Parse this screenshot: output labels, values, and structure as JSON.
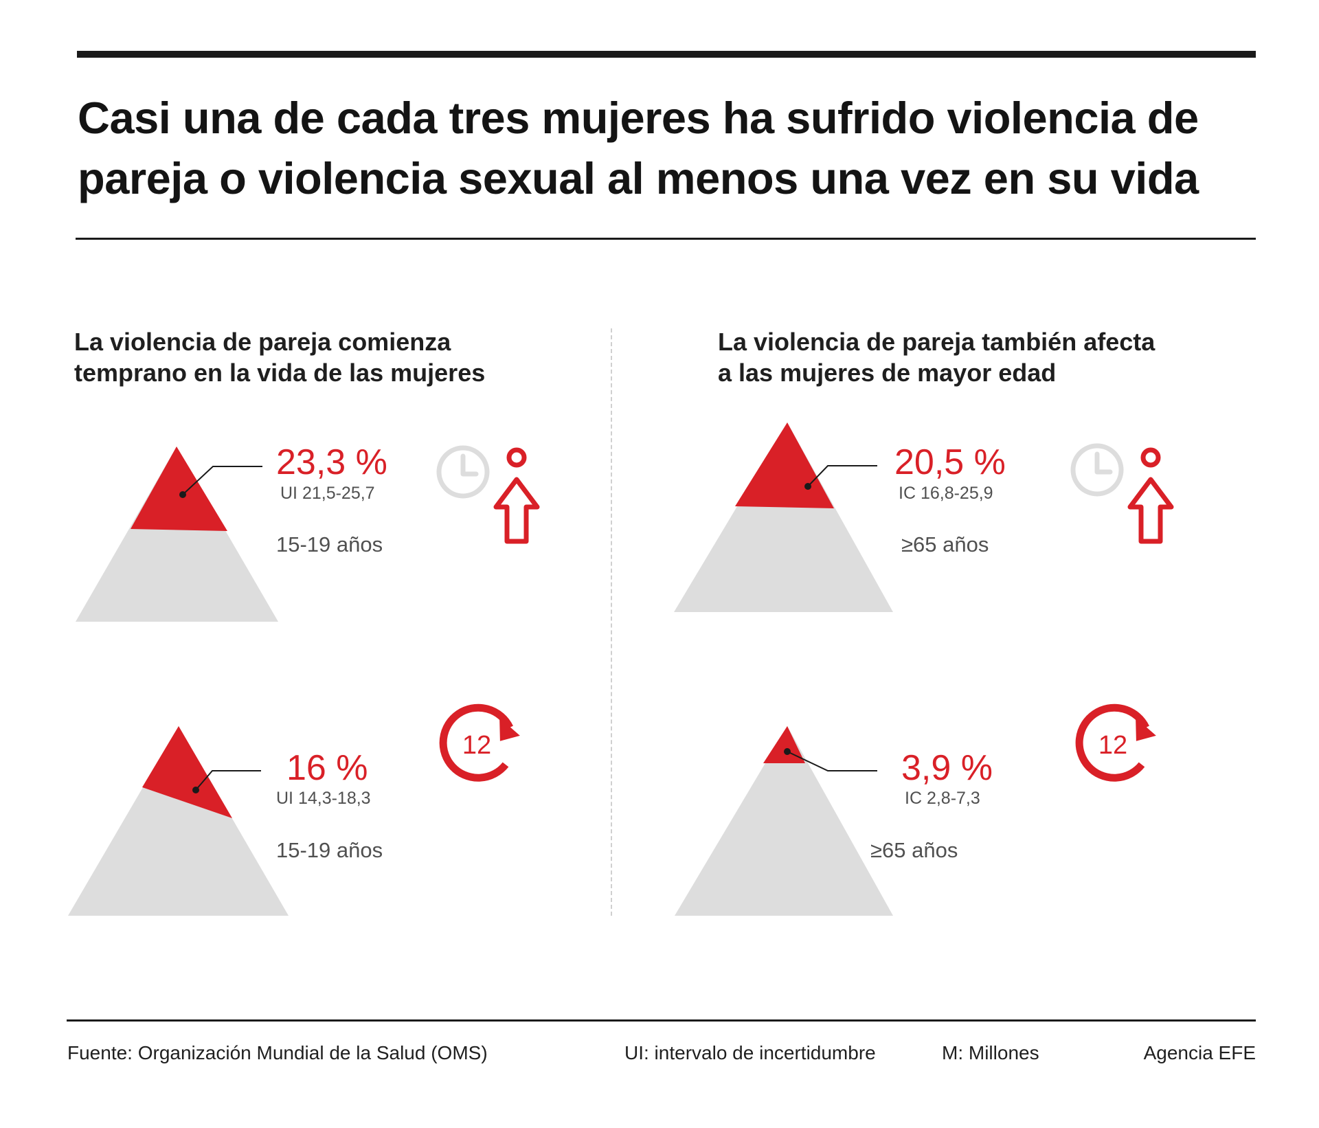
{
  "title_lines": [
    "Casi una de cada tres mujeres ha sufrido violencia de",
    "pareja o violencia sexual al menos una vez en su vida"
  ],
  "left_heading": [
    "La violencia de pareja comienza",
    "temprano en la vida de las mujeres"
  ],
  "right_heading": [
    "La violencia de pareja también afecta",
    "a las mujeres de mayor edad"
  ],
  "chart_data": [
    {
      "type": "pyramid",
      "value": 23.3,
      "value_label": "23,3 %",
      "interval_label": "UI 21,5-25,7",
      "age_label": "15-19 años",
      "icon": "clock-woman-arrow-icon"
    },
    {
      "type": "pyramid",
      "value": 20.5,
      "value_label": "20,5 %",
      "interval_label": "IC 16,8-25,9",
      "age_label": "≥65 años",
      "icon": "clock-woman-arrow-icon"
    },
    {
      "type": "pyramid",
      "value": 16,
      "value_label": "16 %",
      "interval_label": "UI 14,3-18,3",
      "age_label": "15-19 años",
      "icon": "twelve-months-cycle-icon",
      "icon_text": "12"
    },
    {
      "type": "pyramid",
      "value": 3.9,
      "value_label": "3,9 %",
      "interval_label": "IC 2,8-7,3",
      "age_label": "≥65 años",
      "icon": "twelve-months-cycle-icon",
      "icon_text": "12"
    }
  ],
  "footer": {
    "source": "Fuente: Organización Mundial de la Salud (OMS)",
    "ui_note": "UI: intervalo de incertidumbre",
    "m_note": "M: Millones",
    "agency": "Agencia EFE"
  },
  "colors": {
    "accent": "#d92027",
    "pyramid_base": "#dddddd",
    "icon_gray": "#dddddd",
    "text_gray": "#505050"
  }
}
